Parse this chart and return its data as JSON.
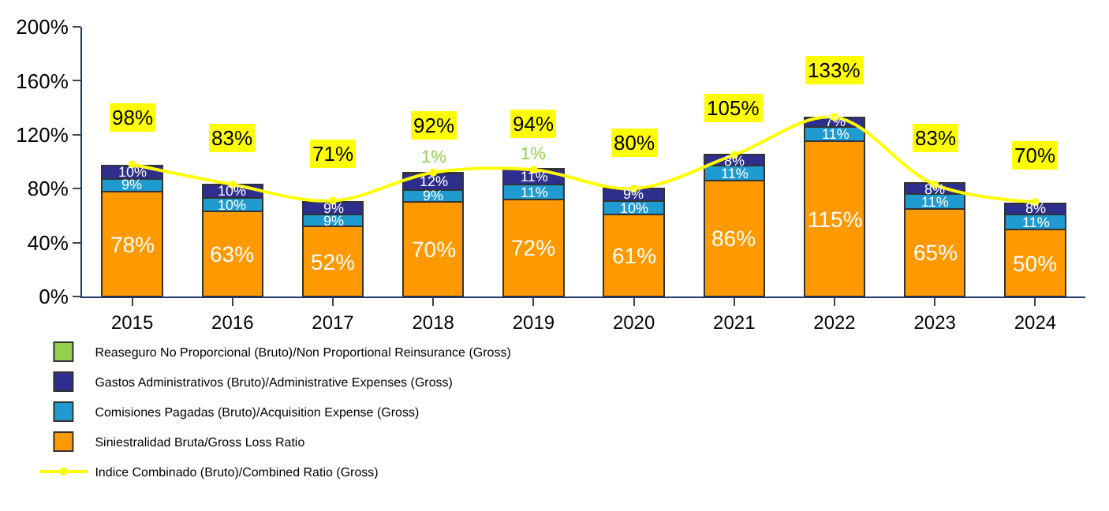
{
  "chart_data": {
    "type": "bar",
    "stacked": true,
    "categories": [
      "2015",
      "2016",
      "2017",
      "2018",
      "2019",
      "2020",
      "2021",
      "2022",
      "2023",
      "2024"
    ],
    "series": [
      {
        "name": "Siniestralidad Bruta/Gross Loss Ratio",
        "color": "#ff9900",
        "values": [
          78,
          63,
          52,
          70,
          72,
          61,
          86,
          115,
          65,
          50
        ],
        "value_labels": [
          "78%",
          "63%",
          "52%",
          "70%",
          "72%",
          "61%",
          "86%",
          "115%",
          "65%",
          "50%"
        ]
      },
      {
        "name": "Comisiones Pagadas (Bruto)/Acquisition Expense (Gross)",
        "color": "#1f9bcf",
        "values": [
          9,
          10,
          9,
          9,
          11,
          10,
          11,
          11,
          11,
          11
        ],
        "value_labels": [
          "9%",
          "10%",
          "9%",
          "9%",
          "11%",
          "10%",
          "11%",
          "11%",
          "11%",
          "11%"
        ]
      },
      {
        "name": "Gastos Administrativos (Bruto)/Administrative Expenses (Gross)",
        "color": "#2e2e8c",
        "values": [
          10,
          10,
          9,
          12,
          11,
          9,
          8,
          7,
          8,
          8
        ],
        "value_labels": [
          "10%",
          "10%",
          "9%",
          "12%",
          "11%",
          "9%",
          "8%",
          "7%",
          "8%",
          "8%"
        ]
      },
      {
        "name": "Reaseguro No Proporcional (Bruto)/Non Proportional Reinsurance (Gross)",
        "color": "#92d050",
        "values": [
          null,
          null,
          null,
          1,
          1,
          null,
          null,
          null,
          null,
          null
        ],
        "value_labels": [
          null,
          null,
          null,
          "1%",
          "1%",
          null,
          null,
          null,
          null,
          null
        ]
      },
      {
        "name": "Indice Combinado (Bruto)/Combined Ratio (Gross)",
        "color": "#ffff00",
        "type": "line",
        "values": [
          98,
          83,
          71,
          92,
          94,
          80,
          105,
          133,
          83,
          70
        ],
        "value_labels": [
          "98%",
          "83%",
          "71%",
          "92%",
          "94%",
          "80%",
          "105%",
          "133%",
          "83%",
          "70%"
        ]
      }
    ],
    "ylim": [
      0,
      200
    ],
    "yticks": [
      {
        "value": 0,
        "label": "0%"
      },
      {
        "value": 40,
        "label": "40%"
      },
      {
        "value": 80,
        "label": "80%"
      },
      {
        "value": 120,
        "label": "120%"
      },
      {
        "value": 160,
        "label": "160%"
      },
      {
        "value": 200,
        "label": "200%"
      }
    ],
    "grid": false,
    "legend": "bottom",
    "marker": "circle"
  }
}
